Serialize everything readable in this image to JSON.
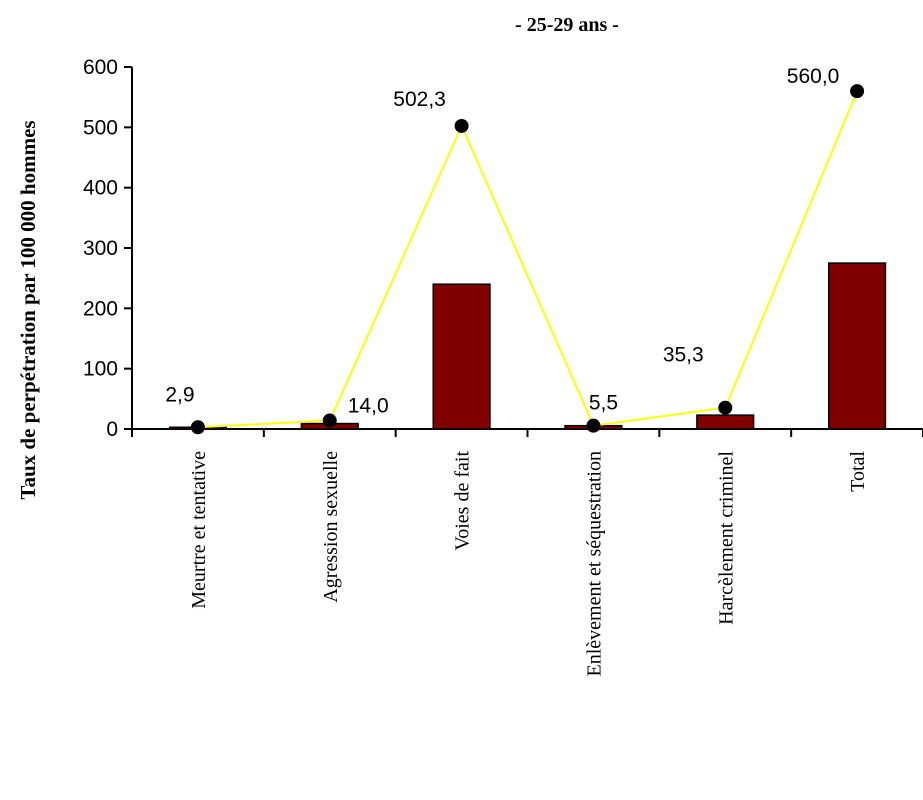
{
  "chart_data": {
    "type": "bar",
    "title": "- 25-29 ans -",
    "ylabel": "Taux de perpétration par 100 000 hommes",
    "xlabel": "",
    "ylim": [
      0,
      600
    ],
    "yticks": [
      "0",
      "100",
      "200",
      "300",
      "400",
      "500",
      "600"
    ],
    "categories": [
      "Meurtre et tentative",
      "Agression sexuelle",
      "Voies de fait",
      "Enlèvement et séquestration",
      "Harcèlement criminel",
      "Total"
    ],
    "series": [
      {
        "type": "bar",
        "color": "#800000",
        "values": [
          2.9,
          9,
          240,
          5.5,
          23,
          275
        ]
      },
      {
        "type": "line",
        "color": "#ffff00",
        "marker_color": "#000000",
        "values": [
          2.9,
          14.0,
          502.3,
          5.5,
          35.3,
          560.0
        ],
        "labels": [
          "2,9",
          "14,0",
          "502,3",
          "5,5",
          "35,3",
          "560,0"
        ]
      }
    ]
  }
}
